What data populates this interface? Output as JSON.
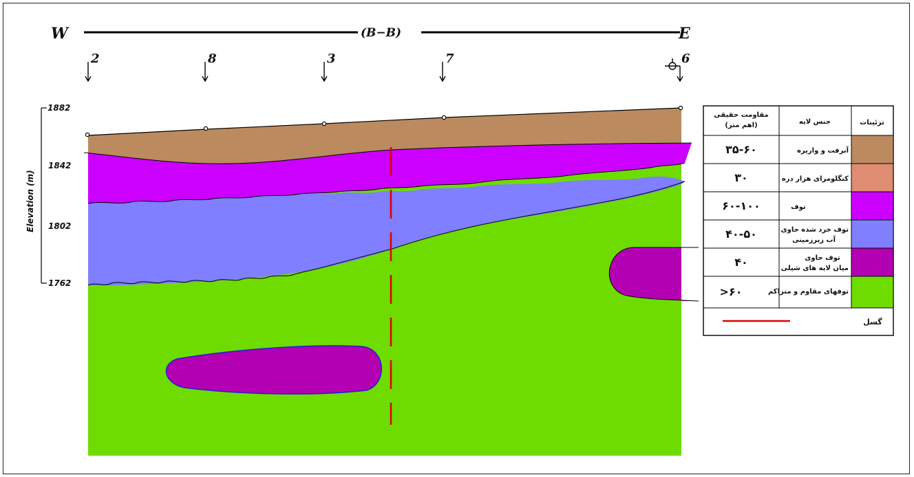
{
  "section": {
    "west": "W",
    "east": "E",
    "title": "(B−B)"
  },
  "wells": [
    "2",
    "8",
    "3",
    "7",
    "6"
  ],
  "axis": {
    "label": "Elevation (m)",
    "ticks": [
      "1882",
      "1842",
      "1802",
      "1762"
    ]
  },
  "legend": {
    "headers": {
      "resistivity": "مقاومت حقیقی",
      "resistivity_unit": "(اهم متر)",
      "lithology": "جنس لایه",
      "pattern": "تزئینات"
    },
    "rows": [
      {
        "resistivity": "۳۵-۶۰",
        "lithology": [
          "آبرفت و واریزه"
        ],
        "color": "#BB8A5E"
      },
      {
        "resistivity": "۳۰",
        "lithology": [
          "کنگلومرای هزار دره"
        ],
        "color": "#DE8C72"
      },
      {
        "resistivity": "۶۰-۱۰۰",
        "lithology": [
          "توف"
        ],
        "color": "#CC00FF"
      },
      {
        "resistivity": "۴۰-۵۰",
        "lithology": [
          "توف خرد شده حاوی",
          "آب زیرزمینی"
        ],
        "color": "#7F7FFF"
      },
      {
        "resistivity": "۴۰",
        "lithology": [
          "توف حاوی",
          "میان لایه های شیلی"
        ],
        "color": "#B300B3"
      },
      {
        "resistivity": ">۶۰",
        "lithology": [
          "توفهای مقاوم و متراکم"
        ],
        "color": "#6EDC00"
      }
    ],
    "fault_label": "گسل",
    "fault_color": "#E00000"
  }
}
